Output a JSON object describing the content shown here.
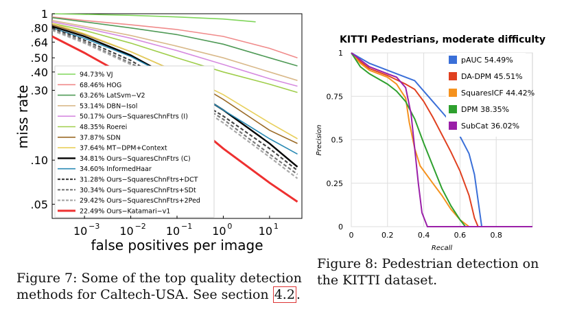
{
  "chart_data": [
    {
      "type": "line",
      "xscale": "log",
      "yscale": "log",
      "xlabel": "false positives per image",
      "ylabel": "miss rate",
      "xlim": [
        0.0002,
        50
      ],
      "ylim": [
        0.04,
        1
      ],
      "x_ticks": [
        {
          "value": 0.001,
          "label": "10",
          "exp": "−3"
        },
        {
          "value": 0.01,
          "label": "10",
          "exp": "−2"
        },
        {
          "value": 0.1,
          "label": "10",
          "exp": "−1"
        },
        {
          "value": 1,
          "label": "10",
          "exp": "0"
        },
        {
          "value": 10,
          "label": "10",
          "exp": "1"
        }
      ],
      "y_ticks": [
        {
          "value": 1,
          "label": "1"
        },
        {
          "value": 0.8,
          "label": ".80"
        },
        {
          "value": 0.64,
          "label": ".64"
        },
        {
          "value": 0.5,
          "label": ".50"
        },
        {
          "value": 0.4,
          "label": ".40"
        },
        {
          "value": 0.3,
          "label": ".30"
        },
        {
          "value": 0.1,
          "label": ".10"
        },
        {
          "value": 0.05,
          "label": ".05"
        }
      ],
      "legend_position": "bottom-left",
      "series": [
        {
          "name": "94.73% VJ",
          "color": "#7fd55a",
          "dash": "solid",
          "width": 1.6,
          "points": [
            [
              0.0002,
              1.0
            ],
            [
              0.001,
              0.99
            ],
            [
              0.01,
              0.975
            ],
            [
              0.1,
              0.95
            ],
            [
              1,
              0.92
            ],
            [
              5,
              0.88
            ]
          ]
        },
        {
          "name": "68.46% HOG",
          "color": "#f08a8a",
          "dash": "solid",
          "width": 1.6,
          "points": [
            [
              0.0002,
              0.95
            ],
            [
              0.001,
              0.9
            ],
            [
              0.01,
              0.84
            ],
            [
              0.1,
              0.78
            ],
            [
              1,
              0.7
            ],
            [
              10,
              0.58
            ],
            [
              40,
              0.5
            ]
          ]
        },
        {
          "name": "63.26% LatSvm−V2",
          "color": "#4f9a56",
          "dash": "solid",
          "width": 1.6,
          "points": [
            [
              0.0002,
              0.94
            ],
            [
              0.001,
              0.88
            ],
            [
              0.01,
              0.8
            ],
            [
              0.1,
              0.72
            ],
            [
              1,
              0.62
            ],
            [
              10,
              0.5
            ],
            [
              40,
              0.44
            ]
          ]
        },
        {
          "name": "53.14% DBN−Isol",
          "color": "#d9b98a",
          "dash": "solid",
          "width": 1.6,
          "points": [
            [
              0.0002,
              0.9
            ],
            [
              0.001,
              0.82
            ],
            [
              0.01,
              0.71
            ],
            [
              0.1,
              0.6
            ],
            [
              1,
              0.5
            ],
            [
              10,
              0.4
            ],
            [
              40,
              0.35
            ]
          ]
        },
        {
          "name": "50.17% Ours−SquaresChnFtrs (I)",
          "color": "#d68be0",
          "dash": "solid",
          "width": 1.6,
          "points": [
            [
              0.0002,
              0.88
            ],
            [
              0.001,
              0.8
            ],
            [
              0.01,
              0.68
            ],
            [
              0.1,
              0.56
            ],
            [
              1,
              0.45
            ],
            [
              10,
              0.36
            ],
            [
              40,
              0.32
            ]
          ]
        },
        {
          "name": "48.35% Roerei",
          "color": "#9fce4b",
          "dash": "solid",
          "width": 1.6,
          "points": [
            [
              0.0002,
              0.86
            ],
            [
              0.001,
              0.77
            ],
            [
              0.01,
              0.63
            ],
            [
              0.1,
              0.5
            ],
            [
              1,
              0.4
            ],
            [
              10,
              0.33
            ],
            [
              40,
              0.29
            ]
          ]
        },
        {
          "name": "37.87% SDN",
          "color": "#9a6a26",
          "dash": "solid",
          "width": 1.6,
          "points": [
            [
              0.0002,
              0.84
            ],
            [
              0.001,
              0.72
            ],
            [
              0.01,
              0.55
            ],
            [
              0.1,
              0.4
            ],
            [
              1,
              0.26
            ],
            [
              10,
              0.16
            ],
            [
              40,
              0.13
            ]
          ]
        },
        {
          "name": "37.64% MT−DPM+Context",
          "color": "#e8cf5a",
          "dash": "solid",
          "width": 1.6,
          "points": [
            [
              0.0002,
              0.86
            ],
            [
              0.001,
              0.73
            ],
            [
              0.01,
              0.55
            ],
            [
              0.1,
              0.4
            ],
            [
              1,
              0.28
            ],
            [
              10,
              0.18
            ],
            [
              40,
              0.14
            ]
          ]
        },
        {
          "name": "34.81% Ours−SquaresChnFtrs (C)",
          "color": "#000000",
          "dash": "solid",
          "width": 2.4,
          "points": [
            [
              0.0002,
              0.82
            ],
            [
              0.001,
              0.7
            ],
            [
              0.01,
              0.52
            ],
            [
              0.1,
              0.35
            ],
            [
              1,
              0.22
            ],
            [
              10,
              0.13
            ],
            [
              40,
              0.09
            ]
          ]
        },
        {
          "name": "34.60% InformedHaar",
          "color": "#2a8ab4",
          "dash": "solid",
          "width": 1.6,
          "points": [
            [
              0.0002,
              0.8
            ],
            [
              0.001,
              0.68
            ],
            [
              0.01,
              0.51
            ],
            [
              0.1,
              0.35
            ],
            [
              1,
              0.22
            ],
            [
              10,
              0.14
            ],
            [
              40,
              0.11
            ]
          ]
        },
        {
          "name": "31.28% Ours−SquaresChnFtrs+DCT",
          "color": "#444444",
          "dash": "dash",
          "width": 2.2,
          "points": [
            [
              0.0002,
              0.8
            ],
            [
              0.001,
              0.66
            ],
            [
              0.01,
              0.48
            ],
            [
              0.1,
              0.31
            ],
            [
              1,
              0.2
            ],
            [
              10,
              0.12
            ],
            [
              40,
              0.085
            ]
          ]
        },
        {
          "name": "30.34% Ours−SquaresChnFtrs+SDt",
          "color": "#777777",
          "dash": "dash",
          "width": 2.2,
          "points": [
            [
              0.0002,
              0.78
            ],
            [
              0.001,
              0.64
            ],
            [
              0.01,
              0.46
            ],
            [
              0.1,
              0.3
            ],
            [
              1,
              0.19
            ],
            [
              10,
              0.11
            ],
            [
              40,
              0.08
            ]
          ]
        },
        {
          "name": "29.42% Ours−SquaresChnFtrs+2Ped",
          "color": "#a8a8a8",
          "dash": "dash",
          "width": 2.2,
          "points": [
            [
              0.0002,
              0.77
            ],
            [
              0.001,
              0.63
            ],
            [
              0.01,
              0.45
            ],
            [
              0.1,
              0.29
            ],
            [
              1,
              0.18
            ],
            [
              10,
              0.105
            ],
            [
              40,
              0.075
            ]
          ]
        },
        {
          "name": "22.49% Ours−Katamari−v1",
          "color": "#ee3030",
          "dash": "solid",
          "width": 3.0,
          "points": [
            [
              0.0002,
              0.7
            ],
            [
              0.001,
              0.54
            ],
            [
              0.01,
              0.36
            ],
            [
              0.1,
              0.22
            ],
            [
              1,
              0.12
            ],
            [
              10,
              0.07
            ],
            [
              40,
              0.052
            ]
          ]
        }
      ]
    },
    {
      "type": "line",
      "title": "KITTI Pedestrians, moderate difficulty",
      "xlabel": "Recall",
      "ylabel": "Precision",
      "xlim": [
        0,
        1
      ],
      "ylim": [
        0,
        1
      ],
      "x_ticks": [
        {
          "value": 0,
          "label": "0"
        },
        {
          "value": 0.2,
          "label": "0.2"
        },
        {
          "value": 0.4,
          "label": "0.4"
        },
        {
          "value": 0.6,
          "label": "0.6"
        },
        {
          "value": 0.8,
          "label": "0.8"
        }
      ],
      "y_ticks": [
        {
          "value": 0,
          "label": "0"
        },
        {
          "value": 0.25,
          "label": "0.25"
        },
        {
          "value": 0.5,
          "label": "0.5"
        },
        {
          "value": 0.75,
          "label": "0.75"
        },
        {
          "value": 1,
          "label": "1"
        }
      ],
      "grid": true,
      "legend_position": "top-right",
      "series": [
        {
          "name": "pAUC 54.49%",
          "color": "#3a6fd8",
          "points": [
            [
              0,
              1
            ],
            [
              0.05,
              0.97
            ],
            [
              0.1,
              0.94
            ],
            [
              0.2,
              0.9
            ],
            [
              0.3,
              0.86
            ],
            [
              0.35,
              0.84
            ],
            [
              0.4,
              0.78
            ],
            [
              0.45,
              0.72
            ],
            [
              0.5,
              0.66
            ],
            [
              0.55,
              0.6
            ],
            [
              0.6,
              0.52
            ],
            [
              0.65,
              0.42
            ],
            [
              0.68,
              0.3
            ],
            [
              0.7,
              0.15
            ],
            [
              0.72,
              0
            ],
            [
              1,
              0
            ]
          ]
        },
        {
          "name": "DA-DPM 45.51%",
          "color": "#e04020",
          "points": [
            [
              0,
              1
            ],
            [
              0.05,
              0.95
            ],
            [
              0.1,
              0.91
            ],
            [
              0.2,
              0.87
            ],
            [
              0.3,
              0.82
            ],
            [
              0.35,
              0.79
            ],
            [
              0.4,
              0.72
            ],
            [
              0.45,
              0.63
            ],
            [
              0.5,
              0.53
            ],
            [
              0.55,
              0.43
            ],
            [
              0.6,
              0.32
            ],
            [
              0.65,
              0.18
            ],
            [
              0.68,
              0.05
            ],
            [
              0.7,
              0
            ],
            [
              1,
              0
            ]
          ]
        },
        {
          "name": "SquaresICF 44.42%",
          "color": "#f5921e",
          "points": [
            [
              0,
              1
            ],
            [
              0.05,
              0.94
            ],
            [
              0.1,
              0.9
            ],
            [
              0.2,
              0.86
            ],
            [
              0.25,
              0.82
            ],
            [
              0.3,
              0.74
            ],
            [
              0.32,
              0.6
            ],
            [
              0.35,
              0.45
            ],
            [
              0.38,
              0.35
            ],
            [
              0.45,
              0.25
            ],
            [
              0.5,
              0.18
            ],
            [
              0.55,
              0.1
            ],
            [
              0.6,
              0.04
            ],
            [
              0.65,
              0
            ],
            [
              1,
              0
            ]
          ]
        },
        {
          "name": "DPM 38.35%",
          "color": "#2ea02e",
          "points": [
            [
              0,
              1
            ],
            [
              0.05,
              0.92
            ],
            [
              0.1,
              0.88
            ],
            [
              0.2,
              0.82
            ],
            [
              0.25,
              0.78
            ],
            [
              0.3,
              0.72
            ],
            [
              0.35,
              0.62
            ],
            [
              0.4,
              0.48
            ],
            [
              0.45,
              0.35
            ],
            [
              0.5,
              0.22
            ],
            [
              0.55,
              0.12
            ],
            [
              0.6,
              0.04
            ],
            [
              0.63,
              0
            ],
            [
              1,
              0
            ]
          ]
        },
        {
          "name": "SubCat 36.02%",
          "color": "#9a1fa8",
          "points": [
            [
              0,
              1
            ],
            [
              0.05,
              0.96
            ],
            [
              0.1,
              0.92
            ],
            [
              0.2,
              0.88
            ],
            [
              0.25,
              0.86
            ],
            [
              0.3,
              0.8
            ],
            [
              0.33,
              0.65
            ],
            [
              0.35,
              0.45
            ],
            [
              0.37,
              0.25
            ],
            [
              0.39,
              0.08
            ],
            [
              0.42,
              0
            ],
            [
              1,
              0
            ]
          ]
        }
      ]
    }
  ],
  "captions": {
    "fig7_line1": "Figure 7: Some of the top quality detection",
    "fig7_line2_prefix": "methods for Caltech-USA. See section ",
    "fig7_ref": "4.2",
    "fig7_line2_suffix": ".",
    "fig8_line1": "Figure 8: Pedestrian detection on",
    "fig8_line2": "the KITTI dataset."
  }
}
